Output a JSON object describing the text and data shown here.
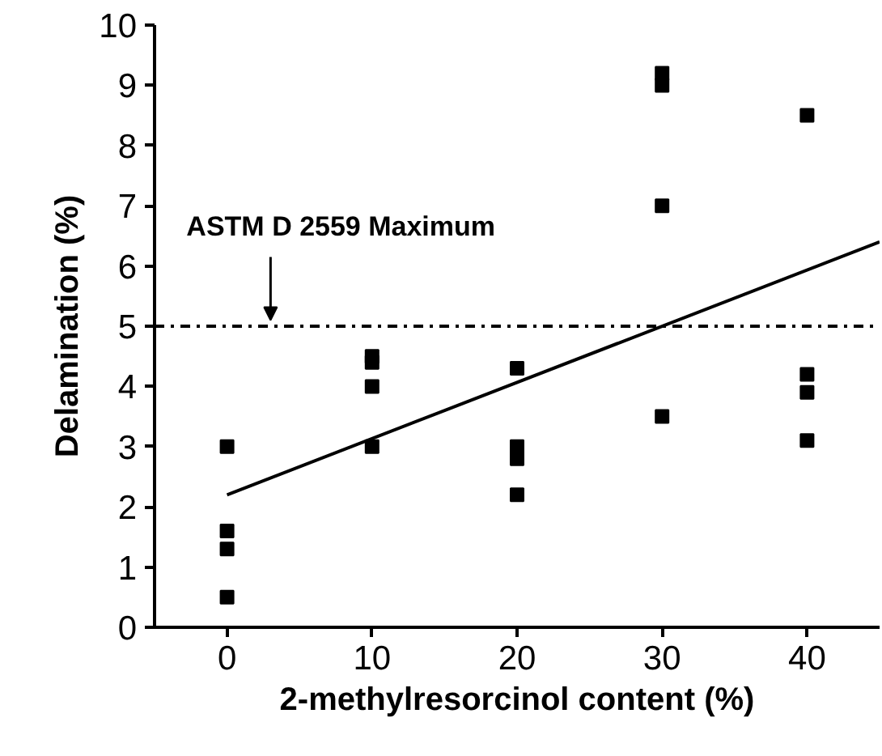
{
  "chart_data": {
    "type": "scatter",
    "xlabel": "2-methylresorcinol content (%)",
    "ylabel": "Delamination (%)",
    "xlim": [
      -5,
      45
    ],
    "ylim": [
      0,
      10
    ],
    "xticks": [
      0,
      10,
      20,
      30,
      40
    ],
    "yticks": [
      0,
      1,
      2,
      3,
      4,
      5,
      6,
      7,
      8,
      9,
      10
    ],
    "grid": false,
    "series": [
      {
        "color": "#000000",
        "marker": "square",
        "x": [
          0,
          0,
          0,
          0,
          10,
          10,
          10,
          10,
          20,
          20,
          20,
          20,
          30,
          30,
          30,
          30,
          40,
          40,
          40,
          40
        ],
        "values": [
          3.0,
          1.6,
          1.3,
          0.5,
          4.5,
          4.4,
          4.0,
          3.0,
          4.3,
          3.0,
          2.8,
          2.2,
          9.2,
          9.0,
          7.0,
          3.5,
          8.5,
          4.2,
          3.9,
          3.1
        ]
      },
      {
        "type": "line",
        "color": "#000000",
        "x": [
          0,
          45
        ],
        "values": [
          2.2,
          6.4
        ],
        "line_style": "solid"
      }
    ],
    "ref_lines": [
      {
        "axis": "y",
        "value": 5,
        "color": "#000000",
        "line_style": "dashdot"
      }
    ],
    "annotations": [
      {
        "text": "ASTM D 2559 Maximum",
        "x": 3,
        "y": 5
      }
    ]
  }
}
